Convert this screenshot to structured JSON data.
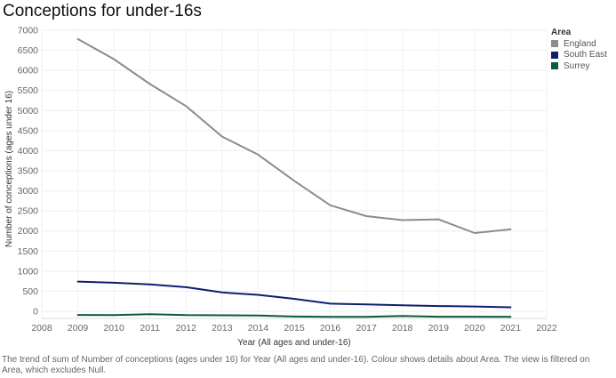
{
  "chart_data": {
    "type": "line",
    "title": "Conceptions for under-16s",
    "xlabel": "Year (All ages and under-16)",
    "ylabel": "Number of conceptions (ages under 16)",
    "x_ticks": [
      "2008",
      "2009",
      "2010",
      "2011",
      "2012",
      "2013",
      "2014",
      "2015",
      "2016",
      "2017",
      "2018",
      "2019",
      "2020",
      "2021",
      "2022"
    ],
    "y_ticks": [
      "0",
      "500",
      "1000",
      "1500",
      "2000",
      "2500",
      "3000",
      "3500",
      "4000",
      "4500",
      "5000",
      "5500",
      "6000",
      "6500",
      "7000"
    ],
    "xlim": [
      2008,
      2022
    ],
    "ylim": [
      0,
      7000
    ],
    "x": [
      2009,
      2010,
      2011,
      2012,
      2013,
      2014,
      2015,
      2016,
      2017,
      2018,
      2019,
      2020,
      2021
    ],
    "grid": true,
    "legend_position": "top-right",
    "series": [
      {
        "name": "England",
        "color": "#8c8c8c",
        "values": [
          6780,
          6280,
          5660,
          5110,
          4350,
          3900,
          3250,
          2640,
          2370,
          2270,
          2290,
          1950,
          2040
        ]
      },
      {
        "name": "South East",
        "color": "#0f1e6e",
        "values": [
          740,
          710,
          670,
          600,
          470,
          410,
          310,
          190,
          170,
          150,
          130,
          120,
          100
        ]
      },
      {
        "name": "Surrey",
        "color": "#0b5a3c",
        "values": [
          -90,
          -95,
          -70,
          -95,
          -100,
          -105,
          -130,
          -140,
          -140,
          -115,
          -135,
          -135,
          -140
        ]
      }
    ]
  },
  "legend": {
    "title": "Area"
  },
  "caption": "The trend of sum of Number of conceptions (ages under 16) for Year (All ages and under-16).  Colour shows details about Area. The view is filtered on Area, which excludes Null."
}
